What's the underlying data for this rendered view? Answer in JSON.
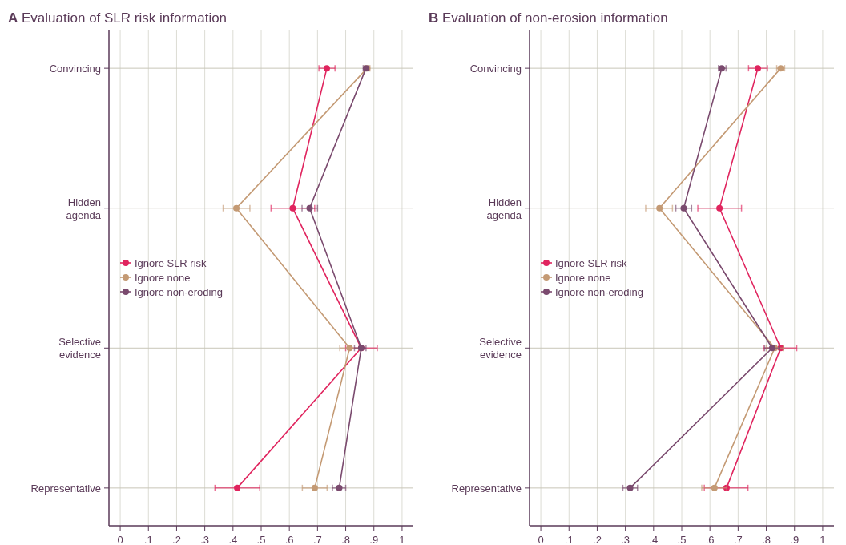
{
  "chart_data": [
    {
      "type": "line",
      "orientation": "horizontal",
      "title": "A Evaluation of SLR risk information",
      "categories": [
        "Convincing",
        "Hidden agenda",
        "Selective evidence",
        "Representative"
      ],
      "xlim": [
        -0.04,
        1.04
      ],
      "xticks": [
        {
          "value": 0,
          "label": "0"
        },
        {
          "value": 0.1,
          "label": ".1"
        },
        {
          "value": 0.2,
          "label": ".2"
        },
        {
          "value": 0.3,
          "label": ".3"
        },
        {
          "value": 0.4,
          "label": ".4"
        },
        {
          "value": 0.5,
          "label": ".5"
        },
        {
          "value": 0.6,
          "label": ".6"
        },
        {
          "value": 0.7,
          "label": ".7"
        },
        {
          "value": 0.8,
          "label": ".8"
        },
        {
          "value": 0.9,
          "label": ".9"
        },
        {
          "value": 1,
          "label": "1"
        }
      ],
      "grid": true,
      "legend": "left",
      "marker": "circle",
      "series": [
        {
          "name": "Ignore SLR risk",
          "color": "#e0245e",
          "values": [
            0.733,
            0.612,
            0.855,
            0.415
          ],
          "errors": [
            [
              0.705,
              0.762
            ],
            [
              0.535,
              0.69
            ],
            [
              0.8,
              0.912
            ],
            [
              0.336,
              0.495
            ]
          ]
        },
        {
          "name": "Ignore none",
          "color": "#c49a74",
          "values": [
            0.876,
            0.412,
            0.814,
            0.69
          ],
          "errors": [
            [
              0.866,
              0.886
            ],
            [
              0.365,
              0.46
            ],
            [
              0.779,
              0.85
            ],
            [
              0.646,
              0.734
            ]
          ]
        },
        {
          "name": "Ignore non-eroding",
          "color": "#7a4a6e",
          "values": [
            0.872,
            0.672,
            0.855,
            0.777
          ],
          "errors": [
            [
              0.862,
              0.882
            ],
            [
              0.645,
              0.7
            ],
            [
              0.831,
              0.872
            ],
            [
              0.753,
              0.8
            ]
          ]
        }
      ]
    },
    {
      "type": "line",
      "orientation": "horizontal",
      "title": "B Evaluation of non-erosion information",
      "categories": [
        "Convincing",
        "Hidden agenda",
        "Selective evidence",
        "Representative"
      ],
      "xlim": [
        -0.04,
        1.04
      ],
      "xticks": [
        {
          "value": 0,
          "label": "0"
        },
        {
          "value": 0.1,
          "label": ".1"
        },
        {
          "value": 0.2,
          "label": ".2"
        },
        {
          "value": 0.3,
          "label": ".3"
        },
        {
          "value": 0.4,
          "label": ".4"
        },
        {
          "value": 0.5,
          "label": ".5"
        },
        {
          "value": 0.6,
          "label": ".6"
        },
        {
          "value": 0.7,
          "label": ".7"
        },
        {
          "value": 0.8,
          "label": ".8"
        },
        {
          "value": 0.9,
          "label": ".9"
        },
        {
          "value": 1,
          "label": "1"
        }
      ],
      "grid": true,
      "legend": "left",
      "marker": "circle",
      "series": [
        {
          "name": "Ignore SLR risk",
          "color": "#e0245e",
          "values": [
            0.77,
            0.634,
            0.851,
            0.659
          ],
          "errors": [
            [
              0.737,
              0.804
            ],
            [
              0.557,
              0.712
            ],
            [
              0.79,
              0.908
            ],
            [
              0.58,
              0.735
            ]
          ]
        },
        {
          "name": "Ignore none",
          "color": "#c49a74",
          "values": [
            0.851,
            0.421,
            0.83,
            0.616
          ],
          "errors": [
            [
              0.837,
              0.865
            ],
            [
              0.372,
              0.467
            ],
            [
              0.8,
              0.86
            ],
            [
              0.571,
              0.66
            ]
          ]
        },
        {
          "name": "Ignore non-eroding",
          "color": "#7a4a6e",
          "values": [
            0.642,
            0.507,
            0.821,
            0.317
          ],
          "errors": [
            [
              0.63,
              0.657
            ],
            [
              0.479,
              0.535
            ],
            [
              0.794,
              0.846
            ],
            [
              0.291,
              0.343
            ]
          ]
        }
      ]
    }
  ]
}
